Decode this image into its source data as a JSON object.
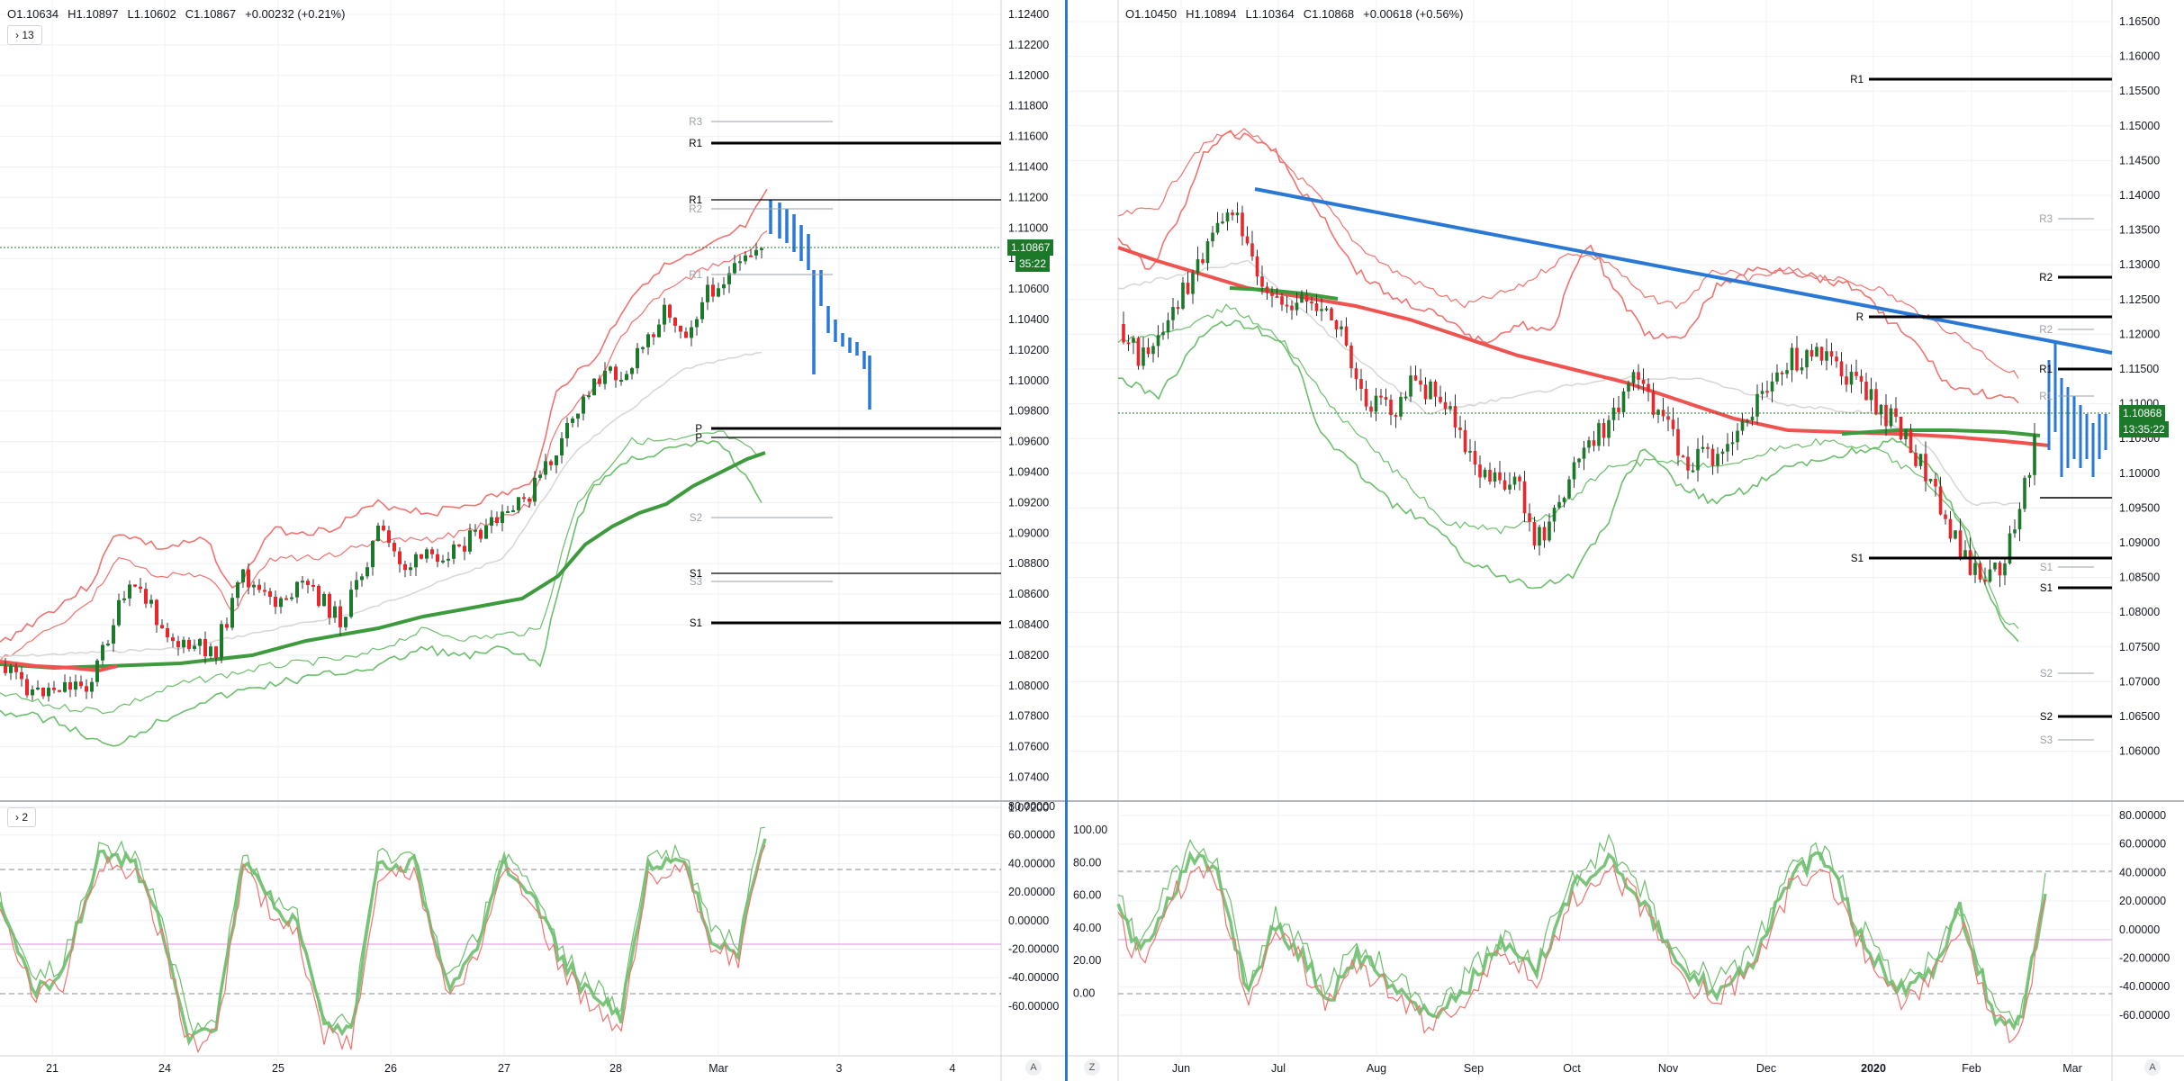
{
  "left_chart": {
    "ohlc": {
      "open": "O1.10634",
      "high": "H1.10897",
      "low": "L1.10602",
      "close": "C1.10867",
      "change": "+0.00232 (+0.21%)"
    },
    "indicator_button": "13",
    "price_tag": "1.10867",
    "countdown": "35:22",
    "price_axis": [
      "1.12400",
      "1.12200",
      "1.12000",
      "1.11800",
      "1.11600",
      "1.11400",
      "1.11200",
      "1.11000",
      "1.10800",
      "1.10600",
      "1.10400",
      "1.10200",
      "1.10000",
      "1.09800",
      "1.09600",
      "1.09400",
      "1.09200",
      "1.09000",
      "1.08800",
      "1.08600",
      "1.08400",
      "1.08200",
      "1.08000",
      "1.07800",
      "1.07600",
      "1.07400",
      "1.07200"
    ],
    "time_axis": [
      "21",
      "24",
      "25",
      "26",
      "27",
      "28",
      "Mar",
      "3",
      "4"
    ],
    "levels": [
      "R3",
      "R1",
      "R1",
      "R2",
      "R1",
      "P",
      "P",
      "S2",
      "S1",
      "S3",
      "S1"
    ],
    "osc_button": "2",
    "osc_axis": [
      "80.00000",
      "60.00000",
      "40.00000",
      "20.00000",
      "0.00000",
      "-20.00000",
      "-40.00000",
      "-60.00000"
    ],
    "auto_button": "A"
  },
  "right_chart": {
    "ohlc": {
      "open": "O1.10450",
      "high": "H1.10894",
      "low": "L1.10364",
      "close": "C1.10868",
      "change": "+0.00618 (+0.56%)"
    },
    "price_tag": "1.10868",
    "countdown": "13:35:22",
    "price_axis": [
      "1.16500",
      "1.16000",
      "1.15500",
      "1.15000",
      "1.14500",
      "1.14000",
      "1.13500",
      "1.13000",
      "1.12500",
      "1.12000",
      "1.11500",
      "1.11000",
      "1.10500",
      "1.10000",
      "1.09500",
      "1.09000",
      "1.08500",
      "1.08000",
      "1.07500",
      "1.07000",
      "1.06500",
      "1.06000"
    ],
    "time_axis": [
      "Jun",
      "Jul",
      "Aug",
      "Sep",
      "Oct",
      "Nov",
      "Dec",
      "2020",
      "Feb",
      "Mar"
    ],
    "levels": [
      "R1",
      "R3",
      "R2",
      "R",
      "R2",
      "R1",
      "R1",
      "S1",
      "S1",
      "S1",
      "S2",
      "S2",
      "S3"
    ],
    "osc_left_axis": [
      "100.00",
      "80.00",
      "60.00",
      "40.00",
      "20.00",
      "0.00"
    ],
    "osc_axis": [
      "80.00000",
      "60.00000",
      "40.00000",
      "20.00000",
      "0.00000",
      "-20.00000",
      "-40.00000",
      "-60.00000"
    ],
    "zoom_button": "Z",
    "auto_button": "A"
  },
  "colors": {
    "up": "#1b7a2a",
    "down": "#e8262b",
    "band_red": "#f0736f",
    "band_green": "#6bbf6b",
    "trend": "#2a78d6",
    "level": "#000000",
    "level_light": "#9aa0a6"
  }
}
